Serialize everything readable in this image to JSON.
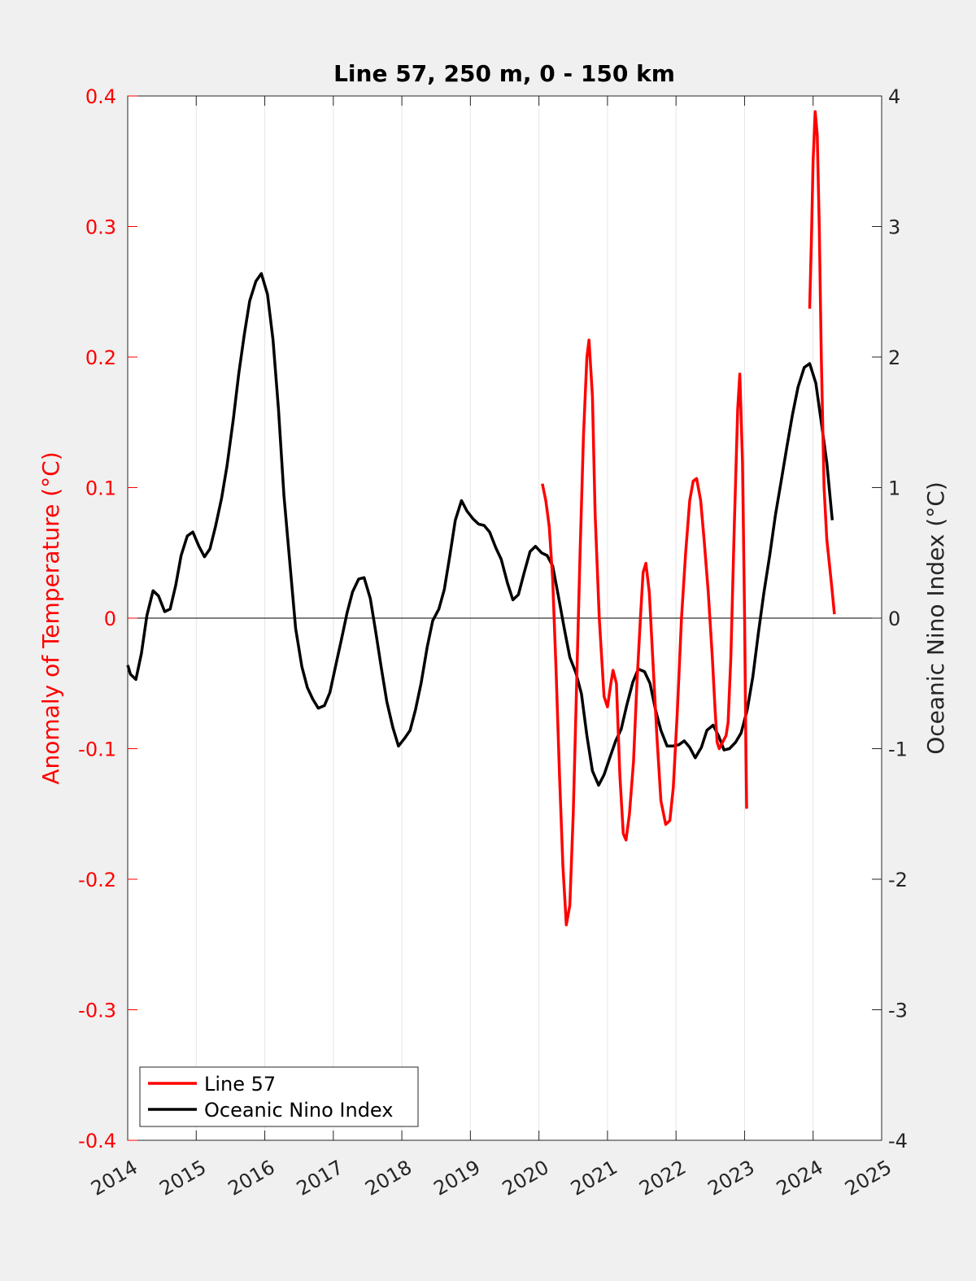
{
  "chart_data": {
    "type": "line",
    "title": "Line 57, 250 m, 0 - 150 km",
    "ylabel_left": "Anomaly of Temperature (°C)",
    "ylabel_right": "Oceanic Nino Index (°C)",
    "xlim": [
      2014,
      2025
    ],
    "ylim_left": [
      -0.4,
      0.4
    ],
    "ylim_right": [
      -4,
      4
    ],
    "x_ticks": [
      2014,
      2015,
      2016,
      2017,
      2018,
      2019,
      2020,
      2021,
      2022,
      2023,
      2024,
      2025
    ],
    "y_ticks_left": [
      "-0.4",
      "-0.3",
      "-0.2",
      "-0.1",
      "0",
      "0.1",
      "0.2",
      "0.3",
      "0.4"
    ],
    "y_ticks_right": [
      "-4",
      "-3",
      "-2",
      "-1",
      "0",
      "1",
      "2",
      "3",
      "4"
    ],
    "grid": "vertical",
    "zero_line": true,
    "legend_position": "bottom-left",
    "series": [
      {
        "name": "Line 57",
        "axis": "left",
        "color": "#ff0000",
        "segments": [
          [
            [
              2020.05,
              0.103
            ],
            [
              2020.1,
              0.09
            ],
            [
              2020.15,
              0.07
            ],
            [
              2020.2,
              0.03
            ],
            [
              2020.25,
              -0.04
            ],
            [
              2020.3,
              -0.12
            ],
            [
              2020.35,
              -0.19
            ],
            [
              2020.4,
              -0.235
            ],
            [
              2020.45,
              -0.22
            ],
            [
              2020.5,
              -0.15
            ],
            [
              2020.55,
              -0.05
            ],
            [
              2020.6,
              0.05
            ],
            [
              2020.65,
              0.14
            ],
            [
              2020.7,
              0.2
            ],
            [
              2020.73,
              0.213
            ],
            [
              2020.78,
              0.17
            ],
            [
              2020.82,
              0.08
            ],
            [
              2020.88,
              0.0
            ],
            [
              2020.95,
              -0.06
            ],
            [
              2021.0,
              -0.068
            ],
            [
              2021.05,
              -0.05
            ],
            [
              2021.08,
              -0.04
            ],
            [
              2021.13,
              -0.05
            ],
            [
              2021.18,
              -0.12
            ],
            [
              2021.23,
              -0.165
            ],
            [
              2021.27,
              -0.17
            ],
            [
              2021.32,
              -0.15
            ],
            [
              2021.38,
              -0.11
            ],
            [
              2021.43,
              -0.05
            ],
            [
              2021.48,
              0.0
            ],
            [
              2021.52,
              0.035
            ],
            [
              2021.56,
              0.042
            ],
            [
              2021.61,
              0.02
            ],
            [
              2021.66,
              -0.03
            ],
            [
              2021.72,
              -0.09
            ],
            [
              2021.78,
              -0.14
            ],
            [
              2021.85,
              -0.158
            ],
            [
              2021.91,
              -0.155
            ],
            [
              2021.96,
              -0.13
            ],
            [
              2022.02,
              -0.07
            ],
            [
              2022.08,
              0.0
            ],
            [
              2022.14,
              0.05
            ],
            [
              2022.2,
              0.09
            ],
            [
              2022.25,
              0.105
            ],
            [
              2022.3,
              0.107
            ],
            [
              2022.36,
              0.09
            ],
            [
              2022.41,
              0.06
            ],
            [
              2022.47,
              0.02
            ],
            [
              2022.53,
              -0.03
            ],
            [
              2022.57,
              -0.07
            ],
            [
              2022.6,
              -0.095
            ],
            [
              2022.63,
              -0.1
            ],
            [
              2022.68,
              -0.095
            ],
            [
              2022.73,
              -0.09
            ],
            [
              2022.76,
              -0.08
            ],
            [
              2022.8,
              -0.03
            ],
            [
              2022.85,
              0.07
            ],
            [
              2022.9,
              0.16
            ],
            [
              2022.93,
              0.187
            ],
            [
              2022.97,
              0.12
            ],
            [
              2023.0,
              0.0
            ],
            [
              2023.02,
              -0.1
            ],
            [
              2023.03,
              -0.146
            ]
          ],
          [
            [
              2023.95,
              0.237
            ],
            [
              2023.98,
              0.3
            ],
            [
              2024.0,
              0.35
            ],
            [
              2024.03,
              0.388
            ],
            [
              2024.06,
              0.37
            ],
            [
              2024.09,
              0.3
            ],
            [
              2024.12,
              0.2
            ],
            [
              2024.16,
              0.1
            ],
            [
              2024.2,
              0.06
            ],
            [
              2024.24,
              0.04
            ],
            [
              2024.28,
              0.02
            ],
            [
              2024.31,
              0.003
            ]
          ]
        ]
      },
      {
        "name": "Oceanic Nino Index",
        "axis": "right",
        "color": "#000000",
        "points": [
          [
            2014.0,
            -0.36
          ],
          [
            2014.04,
            -0.43
          ],
          [
            2014.12,
            -0.47
          ],
          [
            2014.2,
            -0.27
          ],
          [
            2014.28,
            0.02
          ],
          [
            2014.37,
            0.21
          ],
          [
            2014.45,
            0.17
          ],
          [
            2014.54,
            0.05
          ],
          [
            2014.62,
            0.07
          ],
          [
            2014.7,
            0.25
          ],
          [
            2014.78,
            0.48
          ],
          [
            2014.87,
            0.63
          ],
          [
            2014.95,
            0.66
          ],
          [
            2015.04,
            0.55
          ],
          [
            2015.12,
            0.47
          ],
          [
            2015.2,
            0.53
          ],
          [
            2015.28,
            0.7
          ],
          [
            2015.37,
            0.92
          ],
          [
            2015.45,
            1.17
          ],
          [
            2015.54,
            1.52
          ],
          [
            2015.62,
            1.87
          ],
          [
            2015.7,
            2.17
          ],
          [
            2015.78,
            2.43
          ],
          [
            2015.87,
            2.58
          ],
          [
            2015.95,
            2.64
          ],
          [
            2016.04,
            2.48
          ],
          [
            2016.12,
            2.13
          ],
          [
            2016.2,
            1.6
          ],
          [
            2016.28,
            0.94
          ],
          [
            2016.37,
            0.4
          ],
          [
            2016.45,
            -0.08
          ],
          [
            2016.54,
            -0.37
          ],
          [
            2016.62,
            -0.53
          ],
          [
            2016.7,
            -0.62
          ],
          [
            2016.78,
            -0.69
          ],
          [
            2016.87,
            -0.67
          ],
          [
            2016.95,
            -0.57
          ],
          [
            2017.04,
            -0.35
          ],
          [
            2017.12,
            -0.16
          ],
          [
            2017.2,
            0.04
          ],
          [
            2017.28,
            0.2
          ],
          [
            2017.37,
            0.3
          ],
          [
            2017.45,
            0.31
          ],
          [
            2017.54,
            0.15
          ],
          [
            2017.62,
            -0.11
          ],
          [
            2017.7,
            -0.38
          ],
          [
            2017.78,
            -0.64
          ],
          [
            2017.87,
            -0.84
          ],
          [
            2017.95,
            -0.98
          ],
          [
            2018.04,
            -0.92
          ],
          [
            2018.12,
            -0.86
          ],
          [
            2018.2,
            -0.7
          ],
          [
            2018.28,
            -0.5
          ],
          [
            2018.37,
            -0.22
          ],
          [
            2018.45,
            -0.02
          ],
          [
            2018.54,
            0.07
          ],
          [
            2018.62,
            0.22
          ],
          [
            2018.7,
            0.48
          ],
          [
            2018.78,
            0.75
          ],
          [
            2018.87,
            0.9
          ],
          [
            2018.95,
            0.82
          ],
          [
            2019.04,
            0.76
          ],
          [
            2019.12,
            0.72
          ],
          [
            2019.2,
            0.71
          ],
          [
            2019.28,
            0.66
          ],
          [
            2019.37,
            0.54
          ],
          [
            2019.45,
            0.45
          ],
          [
            2019.54,
            0.27
          ],
          [
            2019.62,
            0.14
          ],
          [
            2019.7,
            0.18
          ],
          [
            2019.78,
            0.34
          ],
          [
            2019.87,
            0.51
          ],
          [
            2019.95,
            0.55
          ],
          [
            2020.04,
            0.5
          ],
          [
            2020.12,
            0.48
          ],
          [
            2020.2,
            0.4
          ],
          [
            2020.28,
            0.18
          ],
          [
            2020.37,
            -0.08
          ],
          [
            2020.45,
            -0.3
          ],
          [
            2020.54,
            -0.42
          ],
          [
            2020.62,
            -0.58
          ],
          [
            2020.7,
            -0.9
          ],
          [
            2020.78,
            -1.17
          ],
          [
            2020.87,
            -1.28
          ],
          [
            2020.95,
            -1.2
          ],
          [
            2021.04,
            -1.06
          ],
          [
            2021.12,
            -0.94
          ],
          [
            2021.2,
            -0.85
          ],
          [
            2021.28,
            -0.67
          ],
          [
            2021.37,
            -0.49
          ],
          [
            2021.45,
            -0.39
          ],
          [
            2021.54,
            -0.41
          ],
          [
            2021.62,
            -0.5
          ],
          [
            2021.7,
            -0.7
          ],
          [
            2021.78,
            -0.86
          ],
          [
            2021.87,
            -0.98
          ],
          [
            2021.95,
            -0.98
          ],
          [
            2022.04,
            -0.97
          ],
          [
            2022.12,
            -0.94
          ],
          [
            2022.2,
            -0.99
          ],
          [
            2022.28,
            -1.07
          ],
          [
            2022.37,
            -0.99
          ],
          [
            2022.45,
            -0.86
          ],
          [
            2022.54,
            -0.82
          ],
          [
            2022.62,
            -0.9
          ],
          [
            2022.7,
            -1.01
          ],
          [
            2022.78,
            -1.0
          ],
          [
            2022.87,
            -0.95
          ],
          [
            2022.95,
            -0.88
          ],
          [
            2023.04,
            -0.7
          ],
          [
            2023.12,
            -0.45
          ],
          [
            2023.2,
            -0.12
          ],
          [
            2023.28,
            0.19
          ],
          [
            2023.37,
            0.49
          ],
          [
            2023.45,
            0.79
          ],
          [
            2023.54,
            1.07
          ],
          [
            2023.62,
            1.32
          ],
          [
            2023.7,
            1.56
          ],
          [
            2023.78,
            1.77
          ],
          [
            2023.87,
            1.92
          ],
          [
            2023.95,
            1.95
          ],
          [
            2024.04,
            1.8
          ],
          [
            2024.12,
            1.5
          ],
          [
            2024.2,
            1.19
          ],
          [
            2024.28,
            0.75
          ]
        ]
      }
    ]
  }
}
